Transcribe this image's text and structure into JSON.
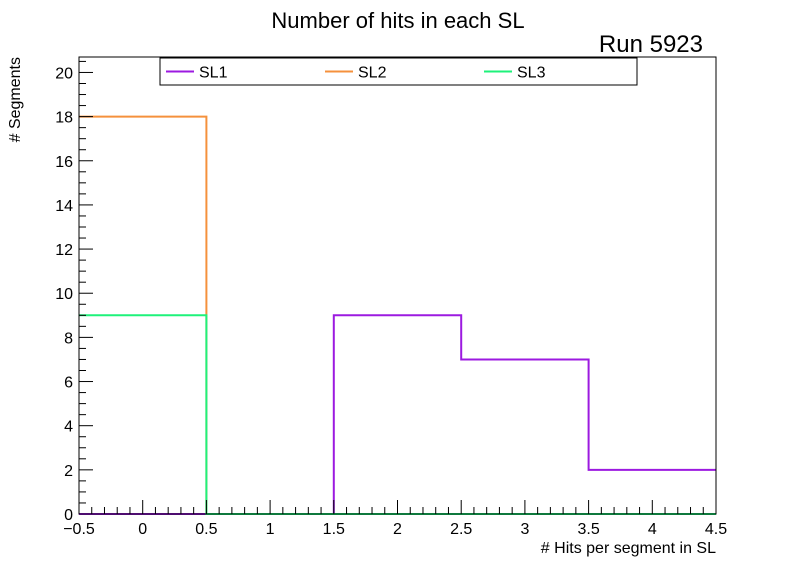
{
  "chart_data": {
    "type": "step",
    "title": "Number of hits in each SL",
    "annotation": "Run 5923",
    "xlabel": "# Hits per segment in SL",
    "ylabel": "# Segments",
    "xlim": [
      -0.5,
      4.5
    ],
    "ylim": [
      0,
      20.7
    ],
    "x_ticks": [
      -0.5,
      0,
      0.5,
      1,
      1.5,
      2,
      2.5,
      3,
      3.5,
      4,
      4.5
    ],
    "x_tick_labels": [
      "−0.5",
      "0",
      "0.5",
      "1",
      "1.5",
      "2",
      "2.5",
      "3",
      "3.5",
      "4",
      "4.5"
    ],
    "y_ticks": [
      0,
      2,
      4,
      6,
      8,
      10,
      12,
      14,
      16,
      18,
      20
    ],
    "y_tick_labels": [
      "0",
      "2",
      "4",
      "6",
      "8",
      "10",
      "12",
      "14",
      "16",
      "18",
      "20"
    ],
    "bin_edges": [
      -0.5,
      0.5,
      1.5,
      2.5,
      3.5,
      4.5
    ],
    "categories": [
      0,
      1,
      2,
      3,
      4
    ],
    "series": [
      {
        "name": "SL1",
        "color": "#9c1ae0",
        "values": [
          0,
          0,
          9,
          7,
          2
        ]
      },
      {
        "name": "SL2",
        "color": "#f5913c",
        "values": [
          18,
          0,
          0,
          0,
          0
        ]
      },
      {
        "name": "SL3",
        "color": "#1ef27a",
        "values": [
          9,
          0,
          0,
          0,
          0
        ]
      }
    ],
    "legend_position": "top",
    "grid": false
  }
}
